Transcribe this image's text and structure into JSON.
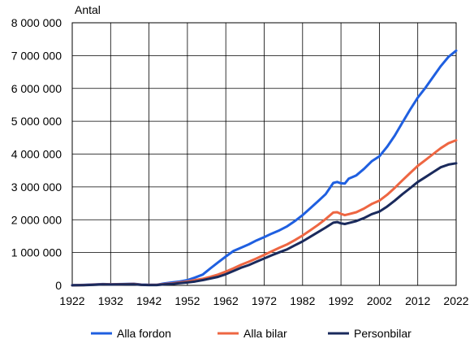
{
  "chart_data": {
    "type": "line",
    "ylabel": "Antal",
    "xlim": [
      1922,
      2022
    ],
    "ylim": [
      0,
      8000000
    ],
    "x_ticks": [
      1922,
      1932,
      1942,
      1952,
      1962,
      1972,
      1982,
      1992,
      2002,
      2012,
      2022
    ],
    "x_tick_labels": [
      "1922",
      "1932",
      "1942",
      "1952",
      "1962",
      "1972",
      "1982",
      "1992",
      "2002",
      "2012",
      "2022"
    ],
    "y_ticks": [
      0,
      1000000,
      2000000,
      3000000,
      4000000,
      5000000,
      6000000,
      7000000,
      8000000
    ],
    "y_tick_labels": [
      "0",
      "1 000 000",
      "2 000 000",
      "3 000 000",
      "4 000 000",
      "5 000 000",
      "6 000 000",
      "7 000 000",
      "8 000 000"
    ],
    "grid": true,
    "legend_position": "bottom",
    "series": [
      {
        "name": "Alla fordon",
        "color": "#1f5fe0",
        "points": [
          [
            1922,
            5000
          ],
          [
            1925,
            15000
          ],
          [
            1928,
            30000
          ],
          [
            1930,
            40000
          ],
          [
            1932,
            35000
          ],
          [
            1935,
            40000
          ],
          [
            1938,
            50000
          ],
          [
            1940,
            25000
          ],
          [
            1942,
            20000
          ],
          [
            1944,
            20000
          ],
          [
            1946,
            60000
          ],
          [
            1948,
            90000
          ],
          [
            1950,
            120000
          ],
          [
            1952,
            160000
          ],
          [
            1954,
            240000
          ],
          [
            1956,
            330000
          ],
          [
            1958,
            520000
          ],
          [
            1960,
            700000
          ],
          [
            1962,
            880000
          ],
          [
            1964,
            1050000
          ],
          [
            1966,
            1150000
          ],
          [
            1968,
            1250000
          ],
          [
            1970,
            1370000
          ],
          [
            1972,
            1470000
          ],
          [
            1974,
            1580000
          ],
          [
            1976,
            1680000
          ],
          [
            1978,
            1800000
          ],
          [
            1980,
            1960000
          ],
          [
            1982,
            2140000
          ],
          [
            1984,
            2350000
          ],
          [
            1986,
            2560000
          ],
          [
            1988,
            2780000
          ],
          [
            1990,
            3120000
          ],
          [
            1991,
            3150000
          ],
          [
            1992,
            3110000
          ],
          [
            1993,
            3100000
          ],
          [
            1994,
            3250000
          ],
          [
            1996,
            3350000
          ],
          [
            1998,
            3550000
          ],
          [
            2000,
            3780000
          ],
          [
            2002,
            3930000
          ],
          [
            2004,
            4220000
          ],
          [
            2006,
            4560000
          ],
          [
            2008,
            4960000
          ],
          [
            2010,
            5350000
          ],
          [
            2012,
            5720000
          ],
          [
            2014,
            6020000
          ],
          [
            2016,
            6350000
          ],
          [
            2018,
            6680000
          ],
          [
            2020,
            6960000
          ],
          [
            2022,
            7150000
          ]
        ]
      },
      {
        "name": "Alla bilar",
        "color": "#ee6642",
        "points": [
          [
            1922,
            3000
          ],
          [
            1925,
            10000
          ],
          [
            1928,
            25000
          ],
          [
            1930,
            35000
          ],
          [
            1932,
            30000
          ],
          [
            1935,
            35000
          ],
          [
            1938,
            45000
          ],
          [
            1940,
            20000
          ],
          [
            1942,
            15000
          ],
          [
            1944,
            15000
          ],
          [
            1946,
            40000
          ],
          [
            1948,
            60000
          ],
          [
            1950,
            90000
          ],
          [
            1952,
            120000
          ],
          [
            1954,
            160000
          ],
          [
            1956,
            200000
          ],
          [
            1958,
            260000
          ],
          [
            1960,
            330000
          ],
          [
            1962,
            420000
          ],
          [
            1964,
            520000
          ],
          [
            1966,
            630000
          ],
          [
            1968,
            720000
          ],
          [
            1970,
            820000
          ],
          [
            1972,
            930000
          ],
          [
            1974,
            1040000
          ],
          [
            1976,
            1150000
          ],
          [
            1978,
            1250000
          ],
          [
            1980,
            1380000
          ],
          [
            1982,
            1520000
          ],
          [
            1984,
            1680000
          ],
          [
            1986,
            1840000
          ],
          [
            1988,
            2020000
          ],
          [
            1990,
            2220000
          ],
          [
            1991,
            2230000
          ],
          [
            1992,
            2180000
          ],
          [
            1993,
            2140000
          ],
          [
            1994,
            2170000
          ],
          [
            1996,
            2230000
          ],
          [
            1998,
            2340000
          ],
          [
            2000,
            2480000
          ],
          [
            2002,
            2580000
          ],
          [
            2004,
            2760000
          ],
          [
            2006,
            2970000
          ],
          [
            2008,
            3200000
          ],
          [
            2010,
            3420000
          ],
          [
            2012,
            3640000
          ],
          [
            2014,
            3820000
          ],
          [
            2016,
            4000000
          ],
          [
            2018,
            4180000
          ],
          [
            2020,
            4330000
          ],
          [
            2022,
            4420000
          ]
        ]
      },
      {
        "name": "Personbilar",
        "color": "#1a2a5c",
        "points": [
          [
            1922,
            2000
          ],
          [
            1925,
            8000
          ],
          [
            1928,
            20000
          ],
          [
            1930,
            30000
          ],
          [
            1932,
            25000
          ],
          [
            1935,
            30000
          ],
          [
            1938,
            35000
          ],
          [
            1940,
            15000
          ],
          [
            1942,
            10000
          ],
          [
            1944,
            10000
          ],
          [
            1946,
            30000
          ],
          [
            1948,
            45000
          ],
          [
            1950,
            70000
          ],
          [
            1952,
            90000
          ],
          [
            1954,
            120000
          ],
          [
            1956,
            160000
          ],
          [
            1958,
            210000
          ],
          [
            1960,
            260000
          ],
          [
            1962,
            340000
          ],
          [
            1964,
            440000
          ],
          [
            1966,
            540000
          ],
          [
            1968,
            620000
          ],
          [
            1970,
            720000
          ],
          [
            1972,
            820000
          ],
          [
            1974,
            920000
          ],
          [
            1976,
            1010000
          ],
          [
            1978,
            1100000
          ],
          [
            1980,
            1220000
          ],
          [
            1982,
            1340000
          ],
          [
            1984,
            1480000
          ],
          [
            1986,
            1620000
          ],
          [
            1988,
            1760000
          ],
          [
            1990,
            1910000
          ],
          [
            1991,
            1930000
          ],
          [
            1992,
            1890000
          ],
          [
            1993,
            1870000
          ],
          [
            1994,
            1900000
          ],
          [
            1996,
            1960000
          ],
          [
            1998,
            2050000
          ],
          [
            2000,
            2170000
          ],
          [
            2002,
            2250000
          ],
          [
            2004,
            2400000
          ],
          [
            2006,
            2580000
          ],
          [
            2008,
            2780000
          ],
          [
            2010,
            2960000
          ],
          [
            2012,
            3150000
          ],
          [
            2014,
            3300000
          ],
          [
            2016,
            3450000
          ],
          [
            2018,
            3600000
          ],
          [
            2020,
            3680000
          ],
          [
            2022,
            3720000
          ]
        ]
      }
    ]
  }
}
